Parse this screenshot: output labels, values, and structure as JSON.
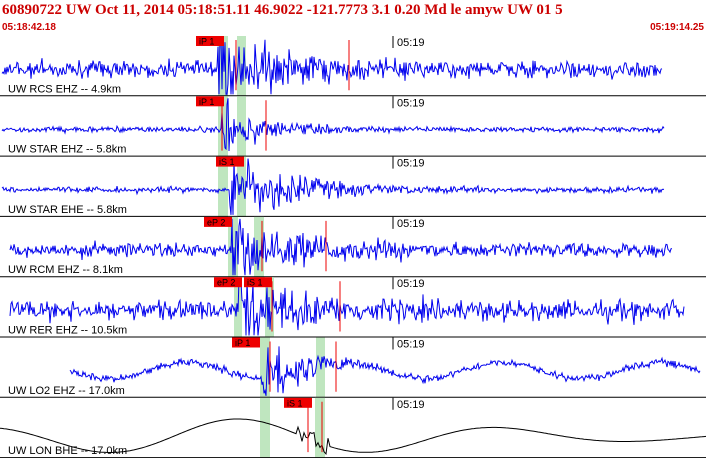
{
  "header": {
    "title": "60890722 UW Oct 11, 2014 05:18:51.11    46.9022 -121.7773  3.1 0.20 Md le amyw UW 01   5",
    "time_start": "05:18:42.18",
    "time_end": "05:19:14.25"
  },
  "colors": {
    "header": "#cc0000",
    "trace": "#0000ee",
    "trace_lon": "#000000",
    "pick": "#ee0000",
    "window": "#bfe6bf",
    "divider": "#000000"
  },
  "time_label": "05:19",
  "panels": [
    {
      "label": "UW RCS EHZ -- 4.9km",
      "picks": [
        {
          "text": "iP 1"
        }
      ],
      "color": "trace"
    },
    {
      "label": "UW STAR EHZ -- 5.8km",
      "picks": [
        {
          "text": "iP 1"
        }
      ],
      "color": "trace"
    },
    {
      "label": "UW STAR EHE -- 5.8km",
      "picks": [
        {
          "text": "iS 1"
        }
      ],
      "color": "trace"
    },
    {
      "label": "UW RCM EHZ -- 8.1km",
      "picks": [
        {
          "text": "eP 2"
        }
      ],
      "color": "trace"
    },
    {
      "label": "UW RER EHZ -- 10.5km",
      "picks": [
        {
          "text": "eP 2"
        },
        {
          "text": "iS 1"
        }
      ],
      "color": "trace"
    },
    {
      "label": "UW LO2 EHZ -- 17.0km",
      "picks": [
        {
          "text": "iP 1"
        }
      ],
      "color": "trace"
    },
    {
      "label": "UW LON BHE -- 17.0km",
      "picks": [
        {
          "text": "iS 1"
        }
      ],
      "color": "trace_lon"
    }
  ]
}
